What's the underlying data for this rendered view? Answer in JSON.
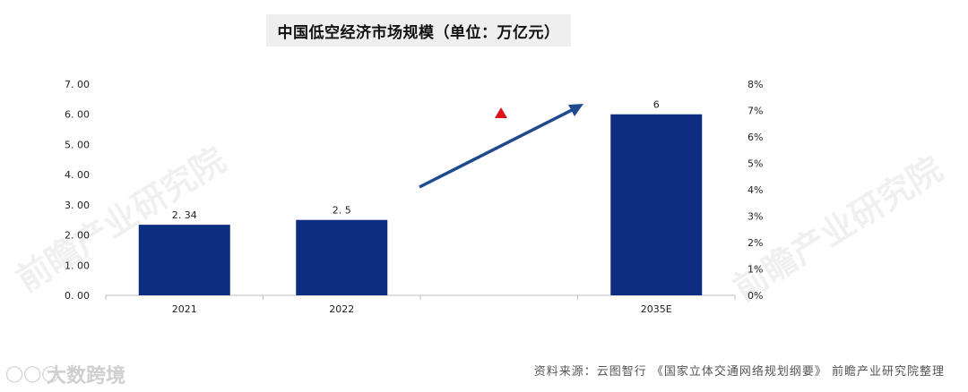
{
  "chart_data": {
    "type": "bar",
    "title": "中国低空经济市场规模（单位：万亿元）",
    "categories": [
      "2021",
      "2022",
      "",
      "2035E"
    ],
    "values": [
      2.34,
      2.5,
      null,
      6
    ],
    "data_labels": [
      "2. 34",
      "2. 5",
      "",
      "6"
    ],
    "ylim": [
      0,
      7
    ],
    "y_ticks": [
      "0. 00",
      "1. 00",
      "2. 00",
      "3. 00",
      "4. 00",
      "5. 00",
      "6. 00",
      "7. 00"
    ],
    "y2lim": [
      0,
      8
    ],
    "y2_ticks": [
      "0%",
      "1%",
      "2%",
      "3%",
      "4%",
      "5%",
      "6%",
      "7%",
      "8%"
    ],
    "bar_color": "#0d2d80",
    "arrow_color": "#1f4a8c",
    "marker_color": "#e0121a",
    "grid": false,
    "xlabel": "",
    "ylabel": ""
  },
  "source": "资料来源：云图智行 《国家立体交通网络规划纲要》 前瞻产业研究院整理",
  "brand": "大数跨境",
  "watermark": "前瞻产业研究院"
}
